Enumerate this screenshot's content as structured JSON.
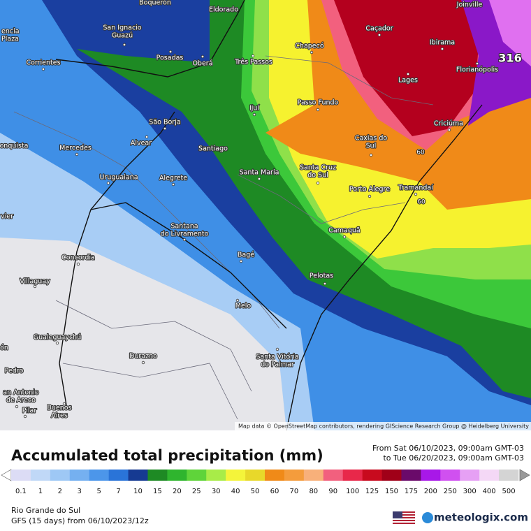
{
  "map": {
    "places": [
      {
        "lines": [
          "Boquerón"
        ]
      },
      {
        "lines": [
          "Eldorado"
        ]
      },
      {
        "lines": [
          "Joinville"
        ]
      },
      {
        "lines": [
          "encia",
          "Plaza"
        ]
      },
      {
        "lines": [
          "San Ignacio",
          "Guazú"
        ]
      },
      {
        "lines": [
          "Caçador"
        ]
      },
      {
        "lines": [
          "Chapecó"
        ]
      },
      {
        "lines": [
          "Ibirama"
        ]
      },
      {
        "lines": [
          "Posadas"
        ]
      },
      {
        "lines": [
          "Oberá"
        ]
      },
      {
        "lines": [
          "Três Passos"
        ]
      },
      {
        "lines": [
          "Corrientes"
        ]
      },
      {
        "lines": [
          "Florianópolis"
        ]
      },
      {
        "lines": [
          "Lages"
        ]
      },
      {
        "lines": [
          "Passo Fundo"
        ]
      },
      {
        "lines": [
          "Ijuí"
        ]
      },
      {
        "lines": [
          "Criciúma"
        ]
      },
      {
        "lines": [
          "São Borja"
        ]
      },
      {
        "lines": [
          "Caxias do",
          "Sul"
        ]
      },
      {
        "lines": [
          "Alvear"
        ]
      },
      {
        "lines": [
          "onquista"
        ]
      },
      {
        "lines": [
          "Mercedes"
        ]
      },
      {
        "lines": [
          "Santiago"
        ]
      },
      {
        "lines": [
          "Santa Maria"
        ]
      },
      {
        "lines": [
          "Santa Cruz",
          "do Sul"
        ]
      },
      {
        "lines": [
          "Uruguaiana"
        ]
      },
      {
        "lines": [
          "Alegrete"
        ]
      },
      {
        "lines": [
          "Tramandaí"
        ]
      },
      {
        "lines": [
          "Porto Alegre"
        ]
      },
      {
        "lines": [
          "vier"
        ]
      },
      {
        "lines": [
          "Santana",
          "do Livramento"
        ]
      },
      {
        "lines": [
          "Camaquã"
        ]
      },
      {
        "lines": [
          "Bagé"
        ]
      },
      {
        "lines": [
          "Concordia"
        ]
      },
      {
        "lines": [
          "Pelotas"
        ]
      },
      {
        "lines": [
          "Villaguay"
        ]
      },
      {
        "lines": [
          "Melo"
        ]
      },
      {
        "lines": [
          "Gualeguaychú"
        ]
      },
      {
        "lines": [
          "ón"
        ]
      },
      {
        "lines": [
          "Durazno"
        ]
      },
      {
        "lines": [
          "Santa Vitória",
          "do Palmar"
        ]
      },
      {
        "lines": [
          "Pedro"
        ]
      },
      {
        "lines": [
          "an Antonio",
          "de Areco"
        ]
      },
      {
        "lines": [
          "Pilar"
        ]
      },
      {
        "lines": [
          "Buenos",
          "Aires"
        ]
      }
    ],
    "max_label": 316,
    "contour_labels": [
      60,
      60
    ],
    "attribution": "Map data © OpenStreetMap contributors, rendering GIScience Research Group @ Heidelberg University"
  },
  "footer": {
    "title": "Accumulated total precipitation (mm)",
    "from": "From Sat 06/10/2023, 09:00am GMT-03",
    "to": "to Tue 06/20/2023, 09:00am GMT-03",
    "region": "Rio Grande do Sul",
    "model": "GFS (15 days) from 06/10/2023/12z",
    "brand": "meteologix.com"
  },
  "legend": {
    "values": [
      0.1,
      1,
      2,
      3,
      5,
      7,
      10,
      15,
      20,
      25,
      30,
      40,
      50,
      60,
      70,
      80,
      90,
      100,
      125,
      150,
      175,
      200,
      250,
      300,
      400,
      500
    ],
    "colors": [
      "#dcdcf5",
      "#c0d8f7",
      "#9ec8f5",
      "#75b0f0",
      "#4c96ea",
      "#2a74d8",
      "#163a92",
      "#1e8a24",
      "#2fb52e",
      "#5fd43a",
      "#a8ec48",
      "#f4f43a",
      "#e8d82a",
      "#f08a18",
      "#f49c3c",
      "#f8b07a",
      "#f2607e",
      "#e8284a",
      "#c80a1e",
      "#a00018",
      "#6a0a6a",
      "#a818e8",
      "#d050f0",
      "#e6a0f4",
      "#f4d8f6",
      "#d4d4d4"
    ]
  }
}
